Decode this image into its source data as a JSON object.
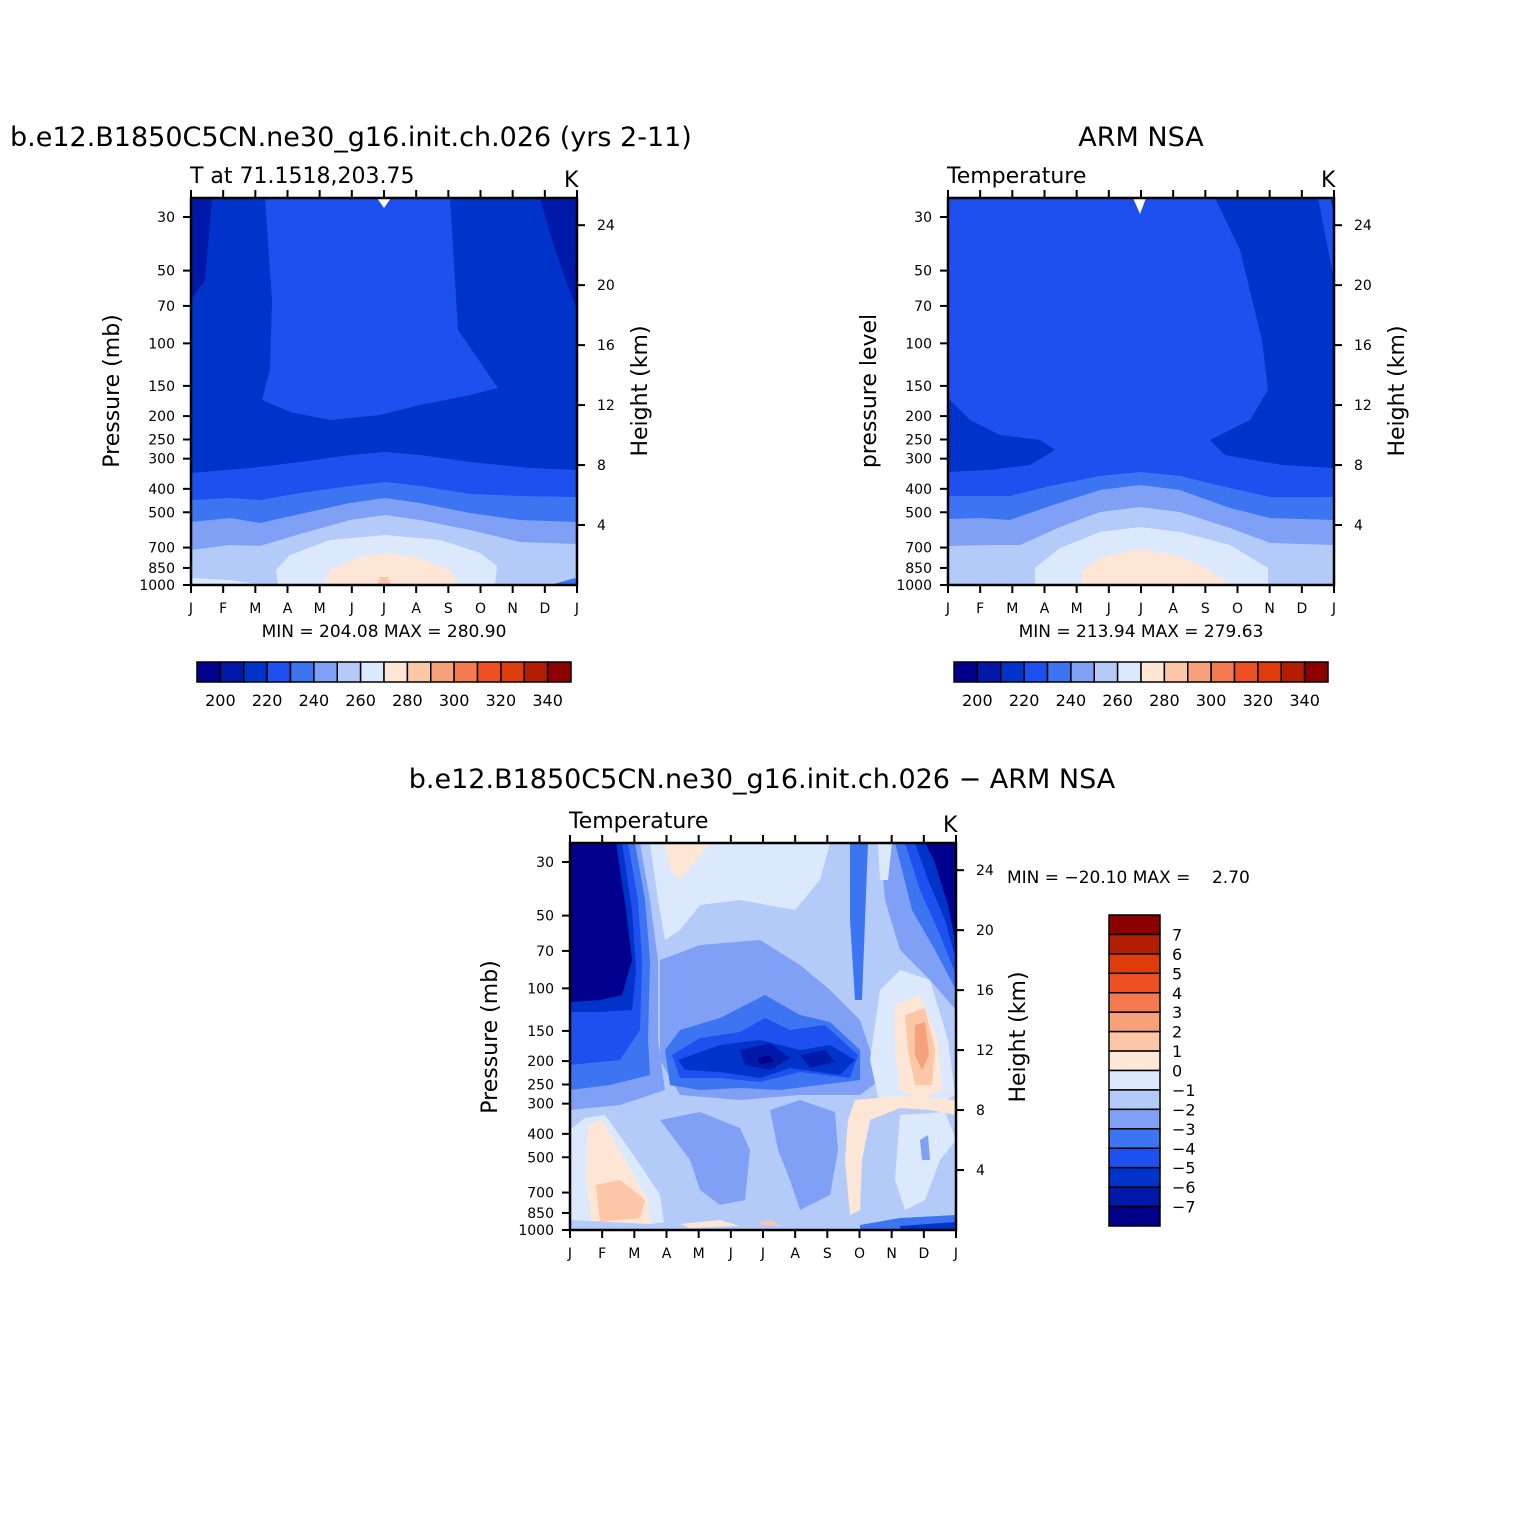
{
  "chart_data": [
    {
      "type": "heatmap",
      "title": "b.e12.B1850C5CN.ne30_g16.init.ch.026 (yrs 2-11)",
      "subtitle": "T at 71.1518,203.75",
      "units": "K",
      "ylabel": "Pressure (mb)",
      "ylabel_right": "Height (km)",
      "x_ticks": [
        "J",
        "F",
        "M",
        "A",
        "M",
        "J",
        "J",
        "A",
        "S",
        "O",
        "N",
        "D",
        "J"
      ],
      "y_ticks": [
        "30",
        "50",
        "70",
        "100",
        "150",
        "200",
        "250",
        "300",
        "400",
        "500",
        "700",
        "850",
        "1000"
      ],
      "y_right_ticks": [
        "24",
        "20",
        "16",
        "12",
        "8",
        "4"
      ],
      "stats": "MIN = 204.08 MAX = 280.90",
      "levels": [
        200,
        220,
        240,
        260,
        280,
        300,
        320,
        340
      ],
      "level_labels": [
        "200",
        "220",
        "240",
        "260",
        "280",
        "300",
        "320",
        "340"
      ],
      "colors": [
        "#00008c",
        "#0019a8",
        "#0033c9",
        "#1e50f0",
        "#3c74f2",
        "#7fa0f5",
        "#b4cbfa",
        "#dce8fc",
        "#fde6d6",
        "#fcc6a7",
        "#f7a17a",
        "#f57a50",
        "#ee5024",
        "#de3c0a",
        "#b31e00",
        "#8c0000"
      ]
    },
    {
      "type": "heatmap",
      "title": "ARM NSA",
      "subtitle": "Temperature",
      "units": "K",
      "ylabel": "pressure level",
      "ylabel_right": "Height (km)",
      "x_ticks": [
        "J",
        "F",
        "M",
        "A",
        "M",
        "J",
        "J",
        "A",
        "S",
        "O",
        "N",
        "D",
        "J"
      ],
      "y_ticks": [
        "30",
        "50",
        "70",
        "100",
        "150",
        "200",
        "250",
        "300",
        "400",
        "500",
        "700",
        "850",
        "1000"
      ],
      "y_right_ticks": [
        "24",
        "20",
        "16",
        "12",
        "8",
        "4"
      ],
      "stats": "MIN = 213.94 MAX = 279.63",
      "levels": [
        200,
        220,
        240,
        260,
        280,
        300,
        320,
        340
      ],
      "level_labels": [
        "200",
        "220",
        "240",
        "260",
        "280",
        "300",
        "320",
        "340"
      ]
    },
    {
      "type": "heatmap",
      "title": "b.e12.B1850C5CN.ne30_g16.init.ch.026 − ARM NSA",
      "subtitle": "Temperature",
      "units": "K",
      "ylabel": "Pressure (mb)",
      "ylabel_right": "Height (km)",
      "x_ticks": [
        "J",
        "F",
        "M",
        "A",
        "M",
        "J",
        "J",
        "A",
        "S",
        "O",
        "N",
        "D",
        "J"
      ],
      "y_ticks": [
        "30",
        "50",
        "70",
        "100",
        "150",
        "200",
        "250",
        "300",
        "400",
        "500",
        "700",
        "850",
        "1000"
      ],
      "y_right_ticks": [
        "24",
        "20",
        "16",
        "12",
        "8",
        "4"
      ],
      "stats": "MIN = −20.10 MAX =    2.70",
      "level_labels": [
        "7",
        "6",
        "5",
        "4",
        "3",
        "2",
        "1",
        "0",
        "−1",
        "−2",
        "−3",
        "−4",
        "−5",
        "−6",
        "−7"
      ],
      "colors": [
        "#8c0000",
        "#b31e00",
        "#de3c0a",
        "#ee5024",
        "#f57a50",
        "#f7a17a",
        "#fcc6a7",
        "#fde6d6",
        "#dce8fc",
        "#b4cbfa",
        "#7fa0f5",
        "#3c74f2",
        "#1e50f0",
        "#0033c9",
        "#0019a8",
        "#00008c"
      ]
    }
  ]
}
